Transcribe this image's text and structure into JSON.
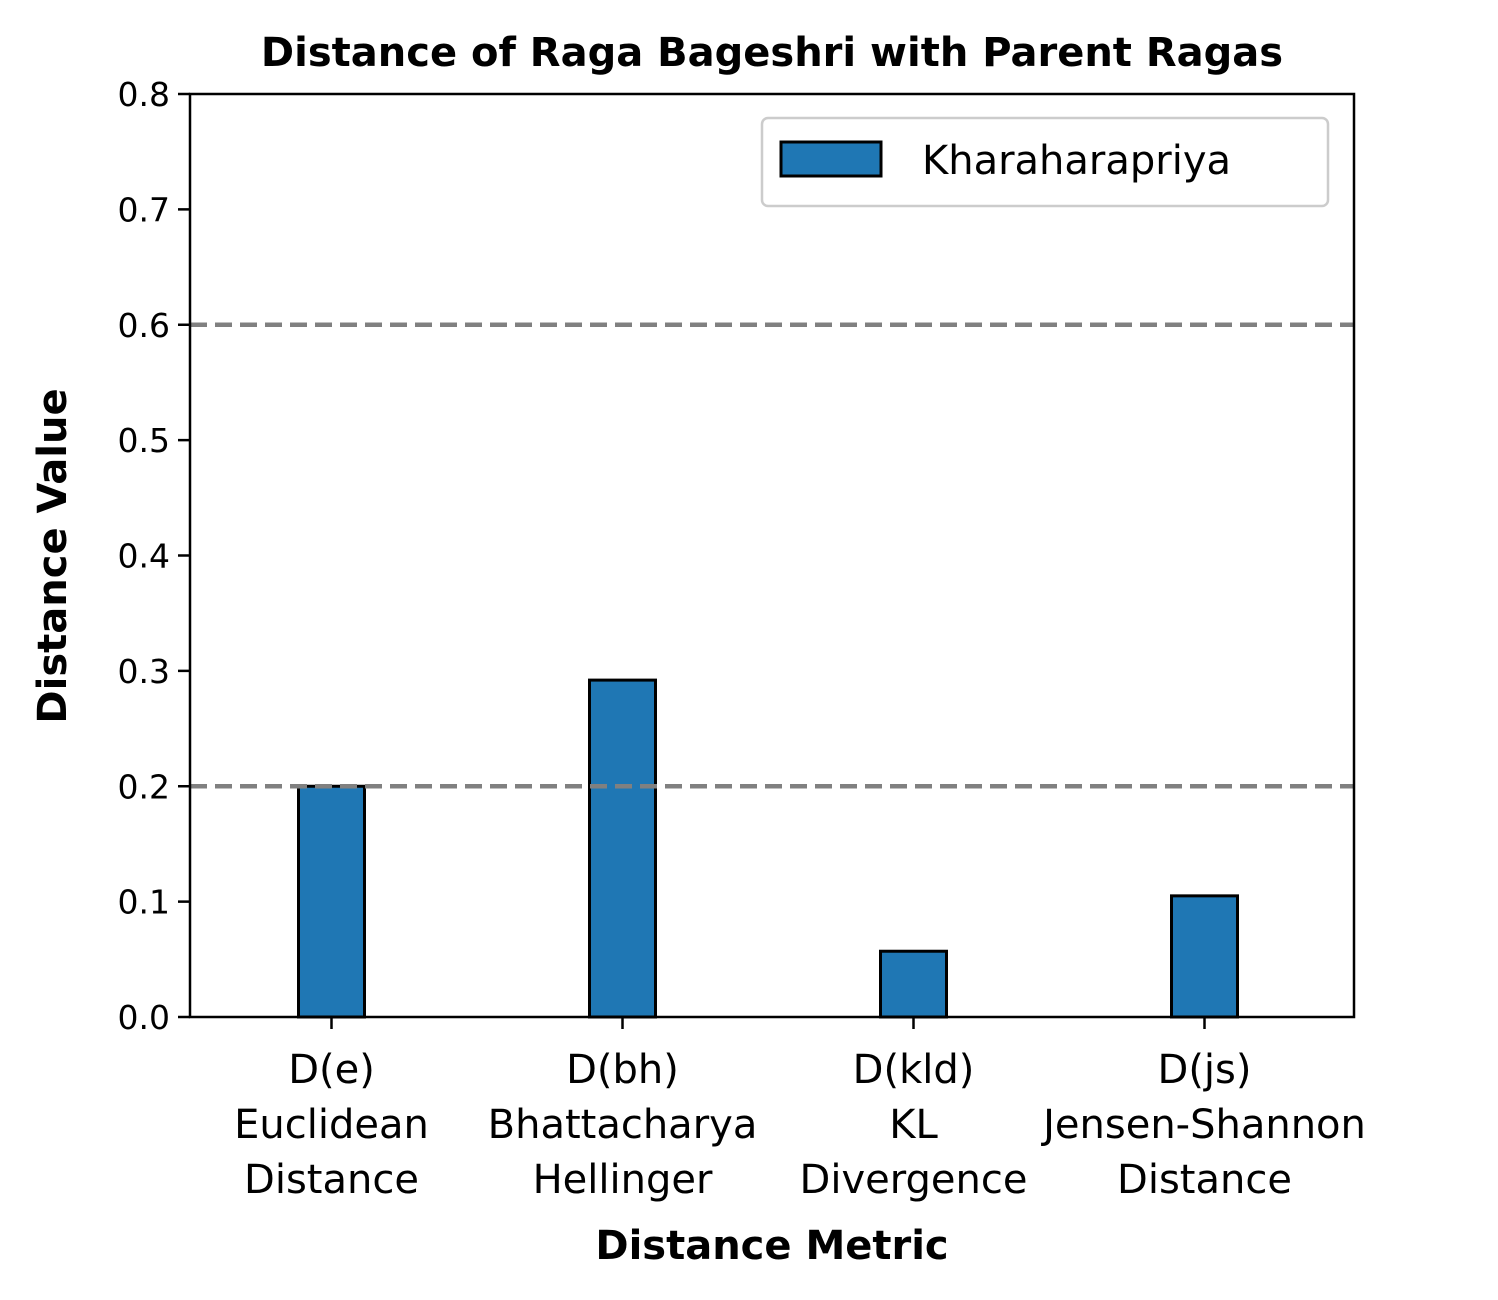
{
  "chart_data": {
    "type": "bar",
    "title": "Distance of Raga Bageshri with Parent Ragas",
    "xlabel": "Distance Metric",
    "ylabel": "Distance Value",
    "ylim": [
      0,
      0.8
    ],
    "yticks": [
      "0.0",
      "0.1",
      "0.2",
      "0.3",
      "0.4",
      "0.5",
      "0.6",
      "0.7",
      "0.8"
    ],
    "categories": [
      [
        "D(e)",
        "Euclidean",
        "Distance"
      ],
      [
        "D(bh)",
        "Bhattacharya",
        "Hellinger"
      ],
      [
        "D(kld)",
        "KL",
        "Divergence"
      ],
      [
        "D(js)",
        "Jensen-Shannon",
        "Distance"
      ]
    ],
    "series": [
      {
        "name": "Kharaharapriya",
        "color": "#1f77b4",
        "values": [
          0.2,
          0.292,
          0.057,
          0.105
        ]
      }
    ],
    "reference_lines": [
      0.2,
      0.6
    ],
    "reference_line_color": "#808080",
    "legend_position": "upper right",
    "grid": false
  }
}
